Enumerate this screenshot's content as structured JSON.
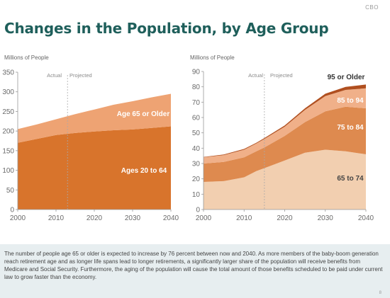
{
  "source_label": "CBO",
  "title": "Changes in the Population, by Age Group",
  "caption": "The number of people age 65 or older is expected to increase by 76 percent between now and 2040. As more members of the baby-boom generation reach retirement age and as longer life spans lead to longer retirements, a significantly larger share of the population will receive benefits from Medicare and Social Security. Furthermore, the aging of the population will cause the total amount of those benefits scheduled to be paid under current law to grow faster than the economy.",
  "page_number": "8",
  "chart_data": [
    {
      "type": "area",
      "stacked": true,
      "ylabel": "Millions of People",
      "x": [
        2000,
        2005,
        2010,
        2013,
        2015,
        2020,
        2025,
        2030,
        2035,
        2040
      ],
      "xticks": [
        2000,
        2010,
        2020,
        2030,
        2040
      ],
      "yticks": [
        0,
        50,
        100,
        150,
        200,
        250,
        300,
        350
      ],
      "ylim": [
        0,
        350
      ],
      "divider_x": 2013,
      "actual_label": "Actual",
      "projected_label": "Projected",
      "series": [
        {
          "name": "Ages 20 to 64",
          "values": [
            170,
            180,
            190,
            193,
            195,
            199,
            202,
            204,
            208,
            212
          ],
          "color": "#d8742c"
        },
        {
          "name": "Age 65 or Older",
          "values": [
            35,
            37,
            40,
            45,
            48,
            56,
            65,
            72,
            78,
            83
          ],
          "color": "#eea373"
        }
      ]
    },
    {
      "type": "area",
      "stacked": true,
      "ylabel": "Millions of People",
      "x": [
        2000,
        2005,
        2010,
        2013,
        2015,
        2020,
        2025,
        2030,
        2035,
        2040
      ],
      "xticks": [
        2000,
        2010,
        2020,
        2030,
        2040
      ],
      "yticks": [
        0,
        10,
        20,
        30,
        40,
        50,
        60,
        70,
        80,
        90
      ],
      "ylim": [
        0,
        90
      ],
      "divider_x": 2015,
      "actual_label": "Actual",
      "projected_label": "Projected",
      "series": [
        {
          "name": "65 to 74",
          "values": [
            18,
            18.5,
            21,
            25,
            27,
            32,
            37,
            39,
            38,
            36
          ],
          "color": "#f2cfb0"
        },
        {
          "name": "75 to 84",
          "values": [
            12,
            12.5,
            13,
            13,
            13.5,
            16,
            20,
            25,
            29,
            30
          ],
          "color": "#de8a4f"
        },
        {
          "name": "85 to 94",
          "values": [
            4,
            4.5,
            5,
            5,
            5.5,
            6,
            8,
            10,
            11,
            13
          ],
          "color": "#f0b089"
        },
        {
          "name": "95 or Older",
          "values": [
            0.3,
            0.4,
            0.5,
            0.5,
            0.6,
            0.8,
            1,
            1.5,
            2,
            2.5
          ],
          "color": "#b04f1f"
        }
      ]
    }
  ]
}
